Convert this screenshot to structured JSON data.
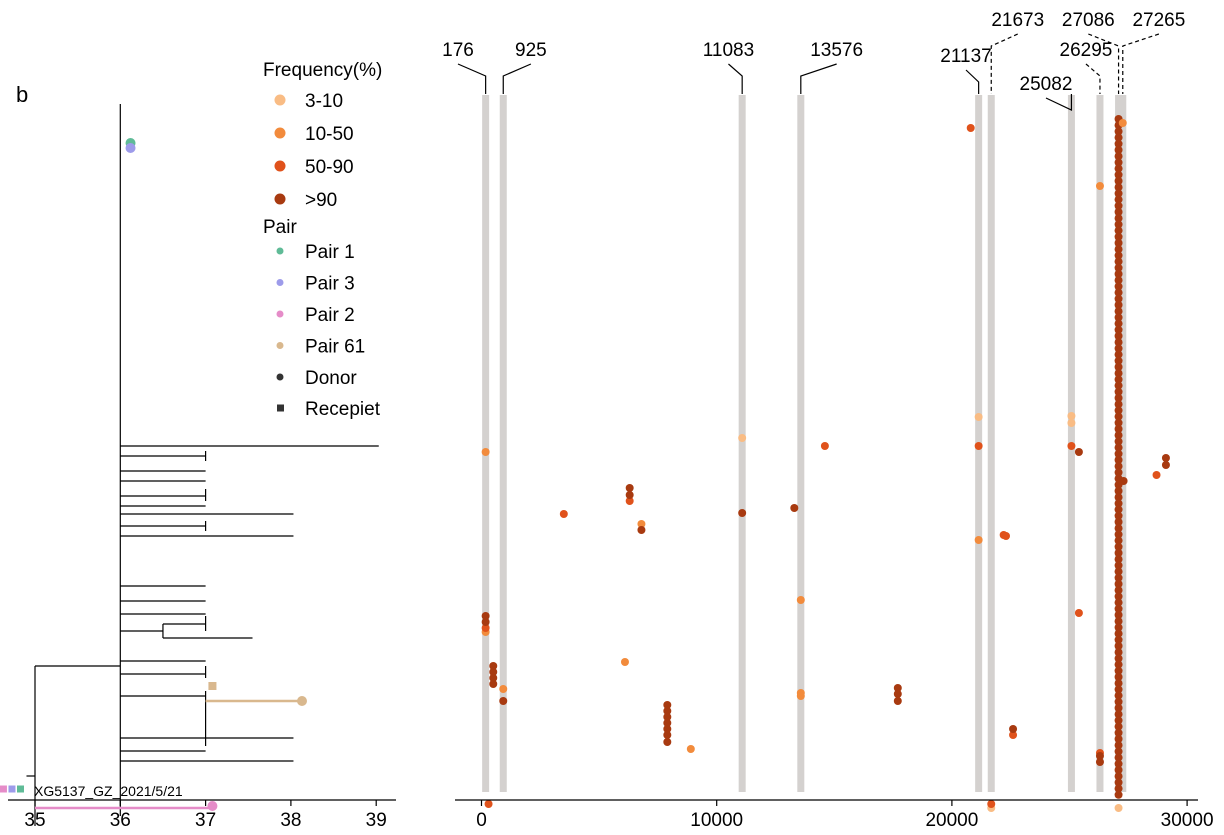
{
  "panel_label": "b",
  "colors": {
    "freq_3_10": "#f9bc84",
    "freq_10_50": "#f28b3c",
    "freq_50_90": "#e0521b",
    "freq_gt90": "#a83a10",
    "pair1": "#5fbb97",
    "pair3": "#9d9bea",
    "pair2": "#e58cc8",
    "pair61": "#d9b88e",
    "band": "#d4d1cf"
  },
  "legend": {
    "freq_title": "Frequency(%)",
    "freq_items": [
      {
        "label": "3-10",
        "color": "#f9bc84"
      },
      {
        "label": "10-50",
        "color": "#f28b3c"
      },
      {
        "label": "50-90",
        "color": "#e0521b"
      },
      {
        "label": ">90",
        "color": "#a83a10"
      }
    ],
    "pair_title": "Pair",
    "pair_items": [
      {
        "label": "Pair 1",
        "color": "#5fbb97"
      },
      {
        "label": "Pair 3",
        "color": "#9d9bea"
      },
      {
        "label": "Pair 2",
        "color": "#e58cc8"
      },
      {
        "label": "Pair 61",
        "color": "#d9b88e"
      }
    ],
    "role_items": [
      {
        "label": "Donor",
        "shape": "circle"
      },
      {
        "label": "Recepiet",
        "shape": "square"
      }
    ]
  },
  "chart_data": [
    {
      "type": "tree",
      "x_ticks": [
        35,
        36,
        37,
        38,
        39
      ],
      "xlim": [
        34.6,
        39.3
      ],
      "tip_label": "XG5137_GZ_2021/5/21",
      "segments": [
        {
          "x1": 36,
          "y1": 8,
          "x2": 36,
          "y2": 720
        },
        {
          "x1": 35,
          "y1": 570,
          "x2": 35,
          "y2": 730
        },
        {
          "x1": 35,
          "y1": 570,
          "x2": 36,
          "y2": 570
        },
        {
          "x1": 34.9,
          "y1": 680,
          "x2": 35,
          "y2": 680
        },
        {
          "x1": 36,
          "y1": 350,
          "x2": 39.03,
          "y2": 350
        },
        {
          "x1": 36,
          "y1": 360,
          "x2": 37,
          "y2": 360
        },
        {
          "x1": 37,
          "y1": 355,
          "x2": 37,
          "y2": 365
        },
        {
          "x1": 36,
          "y1": 375,
          "x2": 37,
          "y2": 375
        },
        {
          "x1": 36,
          "y1": 385,
          "x2": 37,
          "y2": 385
        },
        {
          "x1": 36,
          "y1": 400,
          "x2": 37,
          "y2": 400
        },
        {
          "x1": 37,
          "y1": 393,
          "x2": 37,
          "y2": 405
        },
        {
          "x1": 36,
          "y1": 410,
          "x2": 37,
          "y2": 410
        },
        {
          "x1": 36,
          "y1": 418,
          "x2": 38.03,
          "y2": 418
        },
        {
          "x1": 36,
          "y1": 430,
          "x2": 37,
          "y2": 430
        },
        {
          "x1": 37,
          "y1": 425,
          "x2": 37,
          "y2": 435
        },
        {
          "x1": 36,
          "y1": 440,
          "x2": 38.03,
          "y2": 440
        },
        {
          "x1": 36,
          "y1": 490,
          "x2": 37,
          "y2": 490
        },
        {
          "x1": 36,
          "y1": 505,
          "x2": 37,
          "y2": 505
        },
        {
          "x1": 36,
          "y1": 518,
          "x2": 37,
          "y2": 518
        },
        {
          "x1": 36,
          "y1": 535,
          "x2": 36.5,
          "y2": 535
        },
        {
          "x1": 36.5,
          "y1": 528,
          "x2": 36.5,
          "y2": 542
        },
        {
          "x1": 36.5,
          "y1": 528,
          "x2": 37,
          "y2": 528
        },
        {
          "x1": 37,
          "y1": 520,
          "x2": 37,
          "y2": 535
        },
        {
          "x1": 36.5,
          "y1": 542,
          "x2": 37.55,
          "y2": 542
        },
        {
          "x1": 36,
          "y1": 565,
          "x2": 37,
          "y2": 565
        },
        {
          "x1": 36,
          "y1": 578,
          "x2": 37,
          "y2": 578
        },
        {
          "x1": 37,
          "y1": 570,
          "x2": 37,
          "y2": 582
        },
        {
          "x1": 36,
          "y1": 600,
          "x2": 37,
          "y2": 600
        },
        {
          "x1": 37,
          "y1": 595,
          "x2": 37,
          "y2": 650
        },
        {
          "x1": 36,
          "y1": 642,
          "x2": 38.03,
          "y2": 642
        },
        {
          "x1": 36,
          "y1": 655,
          "x2": 37,
          "y2": 655
        },
        {
          "x1": 36,
          "y1": 665,
          "x2": 38.03,
          "y2": 665
        }
      ],
      "colored_branches": [
        {
          "x1": 37,
          "y1": 605,
          "x2": 38.1,
          "y2": 605,
          "color": "#d9b88e"
        },
        {
          "x1": 35,
          "y1": 712,
          "x2": 37.08,
          "y2": 712,
          "color": "#e58cc8"
        }
      ],
      "tip_markers": [
        {
          "x": 36.12,
          "y": 47,
          "shape": "circle",
          "color": "#5fbb97"
        },
        {
          "x": 36.12,
          "y": 52,
          "shape": "circle",
          "color": "#9d9bea"
        },
        {
          "x": 37.08,
          "y": 590,
          "shape": "square",
          "color": "#d9b88e"
        },
        {
          "x": 38.13,
          "y": 605,
          "shape": "circle",
          "color": "#d9b88e"
        },
        {
          "x": 37.08,
          "y": 710,
          "shape": "circle",
          "color": "#e58cc8"
        }
      ],
      "tip_squares": [
        {
          "x": 34.63,
          "color": "#e58cc8"
        },
        {
          "x": 34.73,
          "color": "#9d9bea"
        },
        {
          "x": 34.83,
          "color": "#5fbb97"
        }
      ]
    },
    {
      "type": "scatter",
      "xlim": [
        -1000,
        31000
      ],
      "x_ticks": [
        0,
        10000,
        20000,
        30000
      ],
      "highlight_positions": [
        176,
        925,
        11083,
        13576,
        21137,
        21673,
        25082,
        26295,
        27086,
        27265
      ],
      "highlight_labels": [
        {
          "label": "176",
          "pos": 176,
          "text_pos": -1000,
          "row": "low",
          "dashed": false
        },
        {
          "label": "925",
          "pos": 925,
          "text_pos": 2100,
          "row": "low",
          "dashed": false
        },
        {
          "label": "11083",
          "pos": 11083,
          "text_pos": 10500,
          "row": "low",
          "dashed": false
        },
        {
          "label": "13576",
          "pos": 13576,
          "text_pos": 15100,
          "row": "low",
          "dashed": false
        },
        {
          "label": "21137",
          "pos": 21137,
          "text_pos": 20600,
          "row": "mid",
          "dashed": false
        },
        {
          "label": "21673",
          "pos": 21673,
          "text_pos": 22800,
          "row": "high",
          "dashed": true
        },
        {
          "label": "25082",
          "pos": 25082,
          "text_pos": 24000,
          "row": "mid2",
          "dashed": false
        },
        {
          "label": "26295",
          "pos": 26295,
          "text_pos": 25700,
          "row": "low",
          "dashed": true
        },
        {
          "label": "27086",
          "pos": 27086,
          "text_pos": 25800,
          "row": "high",
          "dashed": true
        },
        {
          "label": "27265",
          "pos": 27265,
          "text_pos": 28800,
          "row": "high",
          "dashed": true
        }
      ],
      "series": [
        {
          "name": "3-10",
          "color": "#f9bc84",
          "points": [
            [
              11083,
              342
            ],
            [
              21137,
              321
            ],
            [
              25082,
              320
            ],
            [
              25082,
              327
            ],
            [
              21673,
              712
            ],
            [
              27086,
              712
            ]
          ]
        },
        {
          "name": "10-50",
          "color": "#f28b3c",
          "points": [
            [
              176,
              356
            ],
            [
              27265,
              27
            ],
            [
              26295,
              90
            ],
            [
              21137,
              444
            ],
            [
              6800,
              428
            ],
            [
              925,
              593
            ],
            [
              176,
              536
            ],
            [
              13576,
              504
            ],
            [
              13576,
              597
            ],
            [
              13576,
              600
            ],
            [
              6100,
              566
            ],
            [
              8900,
              653
            ]
          ]
        },
        {
          "name": "50-90",
          "color": "#e0521b",
          "points": [
            [
              20800,
              32
            ],
            [
              21137,
              350
            ],
            [
              14600,
              350
            ],
            [
              25082,
              350
            ],
            [
              28700,
              379
            ],
            [
              3500,
              418
            ],
            [
              6300,
              405
            ],
            [
              22200,
              439
            ],
            [
              22300,
              440
            ],
            [
              176,
              532
            ],
            [
              25400,
              517
            ],
            [
              22600,
              639
            ],
            [
              26295,
              657
            ],
            [
              21673,
              708
            ],
            [
              300,
              708
            ]
          ]
        },
        {
          "name": ">90",
          "color": "#a83a10",
          "points": [
            [
              25400,
              356
            ],
            [
              29100,
              362
            ],
            [
              29100,
              369
            ],
            [
              27300,
              385
            ],
            [
              6300,
              392
            ],
            [
              6300,
              399
            ],
            [
              11083,
              417
            ],
            [
              13300,
              412
            ],
            [
              6800,
              434
            ],
            [
              176,
              520
            ],
            [
              176,
              526
            ],
            [
              500,
              570
            ],
            [
              500,
              576
            ],
            [
              500,
              582
            ],
            [
              500,
              588
            ],
            [
              925,
              605
            ],
            [
              17700,
              592
            ],
            [
              17700,
              598
            ],
            [
              17700,
              605
            ],
            [
              7900,
              609
            ],
            [
              7900,
              615
            ],
            [
              7900,
              621
            ],
            [
              7900,
              627
            ],
            [
              7900,
              633
            ],
            [
              7900,
              639
            ],
            [
              7900,
              646
            ],
            [
              22600,
              633
            ],
            [
              26295,
              660
            ],
            [
              26295,
              666
            ]
          ]
        }
      ],
      "dense_column": {
        "pos": 27086,
        "y_from": 23,
        "y_to": 705,
        "step": 6.2,
        "color": "#a83a10"
      }
    }
  ]
}
